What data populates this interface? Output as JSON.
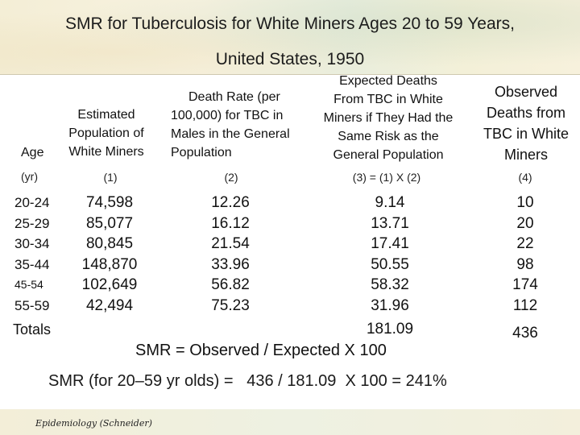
{
  "title": {
    "line1": "SMR for Tuberculosis for White Miners Ages 20 to 59 Years,",
    "line2": "United States, 1950"
  },
  "headers": {
    "age": "Age",
    "population": [
      "Estimated",
      "Population of",
      "White Miners"
    ],
    "death_rate": [
      "Death Rate (per",
      "100,000) for TBC in",
      "Males in the General",
      "Population"
    ],
    "expected": [
      "Expected Deaths",
      "From TBC in White",
      "Miners if They Had the",
      "Same Risk as the",
      "General Population"
    ],
    "observed": [
      "Observed",
      "Deaths from",
      "TBC in White",
      "Miners"
    ]
  },
  "subheaders": {
    "age": "(yr)",
    "population": "(1)",
    "death_rate": "(2)",
    "expected": "(3) = (1) X (2)",
    "observed": "(4)"
  },
  "rows": {
    "age": [
      "20-24",
      "25-29",
      "30-34",
      "35-44",
      "45-54",
      "55-59"
    ],
    "population": [
      "74,598",
      "85,077",
      "80,845",
      "148,870",
      "102,649",
      "42,494"
    ],
    "death_rate": [
      "12.26",
      "16.12",
      "21.54",
      "33.96",
      "56.82",
      "75.23"
    ],
    "expected": [
      "9.14",
      "13.71",
      "17.41",
      "50.55",
      "58.32",
      "31.96"
    ],
    "observed": [
      "10",
      "20",
      "22",
      "98",
      "174",
      "112"
    ]
  },
  "totals": {
    "label": "Totals",
    "expected": "181.09",
    "observed": "436"
  },
  "formula": {
    "definition": "SMR = Observed / Expected X 100",
    "result": "SMR (for 20–59 yr olds) =   436 / 181.09  X 100 = 241%"
  },
  "footer": "Epidemiology (Schneider)"
}
